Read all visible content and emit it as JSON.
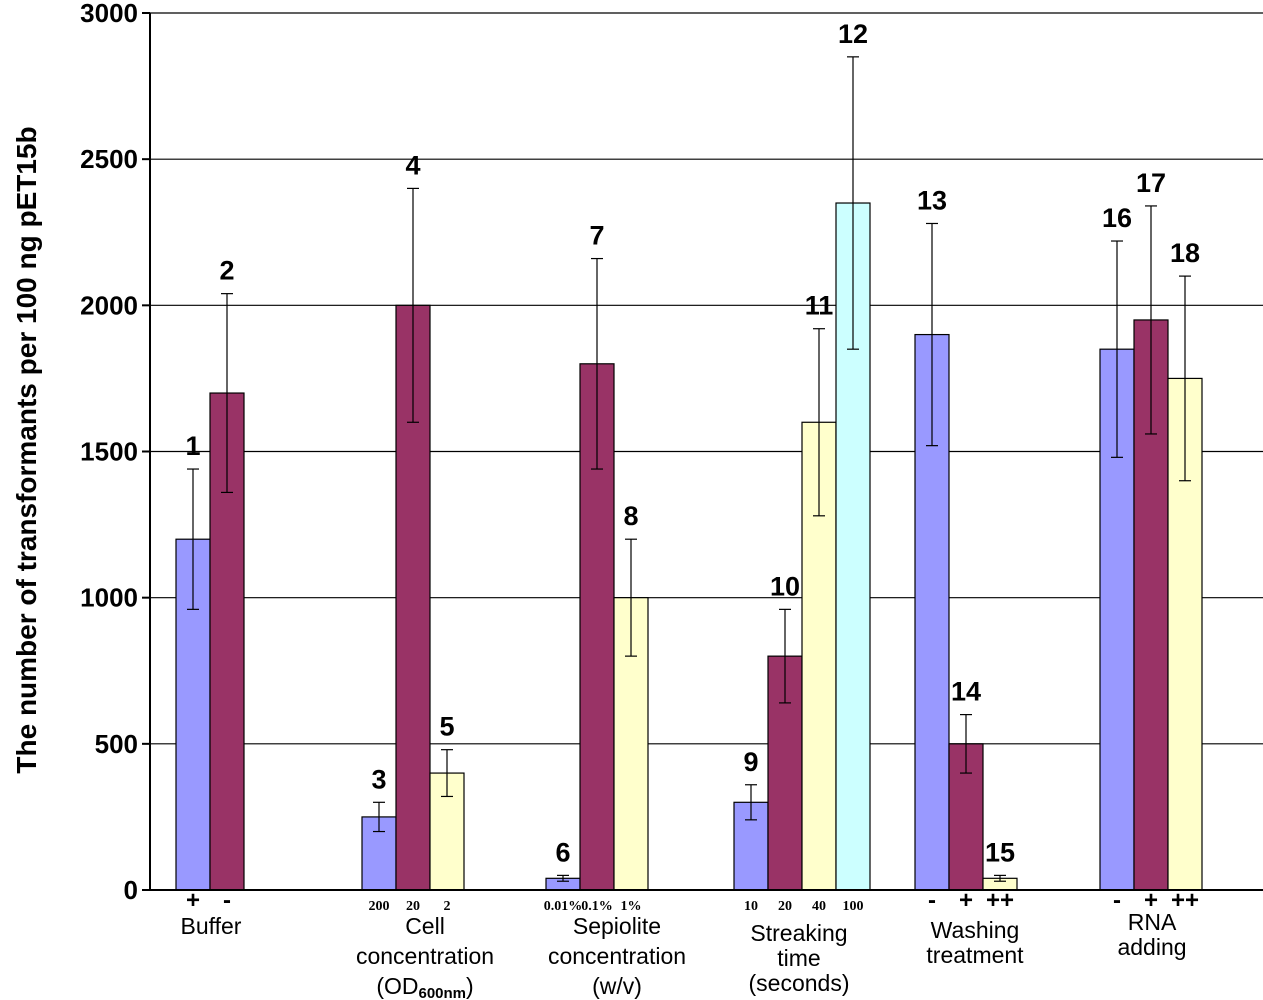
{
  "chart_data": {
    "type": "bar",
    "ylabel": "The number of transformants per 100 ng pET15b",
    "ylim": [
      0,
      3000
    ],
    "yticks": [
      "3000",
      "2500",
      "2000",
      "1500",
      "1000",
      "500",
      "0"
    ],
    "colors": {
      "blue": "#9999ff",
      "maroon": "#993366",
      "yellow": "#ffffcc",
      "cyan": "#ccffff"
    },
    "groups": [
      {
        "label_lines": [
          "Buffer"
        ],
        "sub_label": "",
        "bars": [
          {
            "n": "1",
            "value": 1200,
            "err": 240,
            "color": "blue",
            "tick": "+"
          },
          {
            "n": "2",
            "value": 1700,
            "err": 340,
            "color": "maroon",
            "tick": "-"
          }
        ]
      },
      {
        "label_lines": [
          "Cell",
          "concentration"
        ],
        "sub_label": "OD600nm",
        "bars": [
          {
            "n": "3",
            "value": 250,
            "err": 50,
            "color": "blue",
            "tick": "200"
          },
          {
            "n": "4",
            "value": 2000,
            "err": 400,
            "color": "maroon",
            "tick": "20"
          },
          {
            "n": "5",
            "value": 400,
            "err": 80,
            "color": "yellow",
            "tick": "2"
          }
        ]
      },
      {
        "label_lines": [
          "Sepiolite",
          "concentration",
          "(w/v)"
        ],
        "sub_label": "",
        "bars": [
          {
            "n": "6",
            "value": 40,
            "err": 10,
            "color": "blue",
            "tick": "0.01%"
          },
          {
            "n": "7",
            "value": 1800,
            "err": 360,
            "color": "maroon",
            "tick": "0.1%"
          },
          {
            "n": "8",
            "value": 1000,
            "err": 200,
            "color": "yellow",
            "tick": "1%"
          }
        ]
      },
      {
        "label_lines": [
          "Streaking",
          "time",
          "(seconds)"
        ],
        "sub_label": "",
        "bars": [
          {
            "n": "9",
            "value": 300,
            "err": 60,
            "color": "blue",
            "tick": "10"
          },
          {
            "n": "10",
            "value": 800,
            "err": 160,
            "color": "maroon",
            "tick": "20"
          },
          {
            "n": "11",
            "value": 1600,
            "err": 320,
            "color": "yellow",
            "tick": "40"
          },
          {
            "n": "12",
            "value": 2350,
            "err": 500,
            "color": "cyan",
            "tick": "100"
          }
        ]
      },
      {
        "label_lines": [
          "Washing",
          "treatment"
        ],
        "sub_label": "",
        "bars": [
          {
            "n": "13",
            "value": 1900,
            "err": 380,
            "color": "blue",
            "tick": "-"
          },
          {
            "n": "14",
            "value": 500,
            "err": 100,
            "color": "maroon",
            "tick": "+"
          },
          {
            "n": "15",
            "value": 40,
            "err": 10,
            "color": "yellow",
            "tick": "++"
          }
        ]
      },
      {
        "label_lines": [
          "RNA",
          "adding"
        ],
        "sub_label": "",
        "bars": [
          {
            "n": "16",
            "value": 1850,
            "err": 370,
            "color": "blue",
            "tick": "-"
          },
          {
            "n": "17",
            "value": 1950,
            "err": 390,
            "color": "maroon",
            "tick": "+"
          },
          {
            "n": "18",
            "value": 1750,
            "err": 350,
            "color": "yellow",
            "tick": "++"
          }
        ]
      }
    ]
  }
}
